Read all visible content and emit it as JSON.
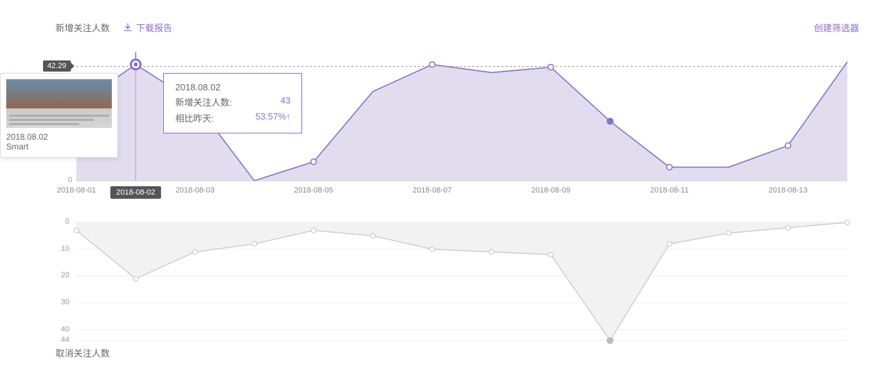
{
  "header": {
    "title": "新增关注人数",
    "download_label": "下载报告",
    "create_filter_label": "创建筛选器"
  },
  "chart_top": {
    "type": "area",
    "x_labels": [
      "2018-08-01",
      "2018-08-02",
      "2018-08-03",
      "",
      "2018-08-05",
      "",
      "2018-08-07",
      "",
      "2018-08-09",
      "",
      "2018-08-11",
      "",
      "2018-08-13",
      ""
    ],
    "x_highlight_index": 1,
    "values": [
      28,
      43,
      29,
      0,
      7,
      33,
      43,
      40,
      42,
      22,
      5,
      5,
      13,
      44
    ],
    "reference_value": 42.29,
    "reference_label": "42.29",
    "y0_label": "0",
    "y_max": 45,
    "line_color": "#8c6fc7",
    "fill_color": "#d6cde8",
    "fill_opacity": 0.7,
    "reference_line_color": "#999999",
    "point_open_indices": [
      4,
      6,
      8,
      10,
      12
    ],
    "point_solid_index": 9,
    "point_highlight_index": 1,
    "grid_color": "#f0f0f0",
    "background_color": "#ffffff"
  },
  "tooltip": {
    "date": "2018.08.02",
    "row1_label": "新增关注人数:",
    "row1_value": "43",
    "row2_label": "相比昨天:",
    "row2_value": "53.57%",
    "row2_arrow": "↑"
  },
  "preview": {
    "date_label": "2018.08.02",
    "name_label": "Smart"
  },
  "chart_bottom": {
    "type": "area",
    "title": "取消关注人数",
    "x_labels_hidden": true,
    "values_down": [
      3,
      21,
      11,
      8,
      3,
      5,
      10,
      11,
      12,
      44,
      8,
      4,
      2,
      0
    ],
    "y_labels": [
      0,
      10,
      20,
      30,
      40,
      44
    ],
    "y_max": 44,
    "line_color": "#cccccc",
    "fill_color": "#f2f2f2",
    "fill_opacity": 1,
    "grid_color": "#eeeeee",
    "point_open_all": true,
    "point_solid_index": 9
  },
  "colors": {
    "accent": "#8c6fc7",
    "text": "#666666",
    "muted": "#999999",
    "badge_bg": "#555555"
  }
}
